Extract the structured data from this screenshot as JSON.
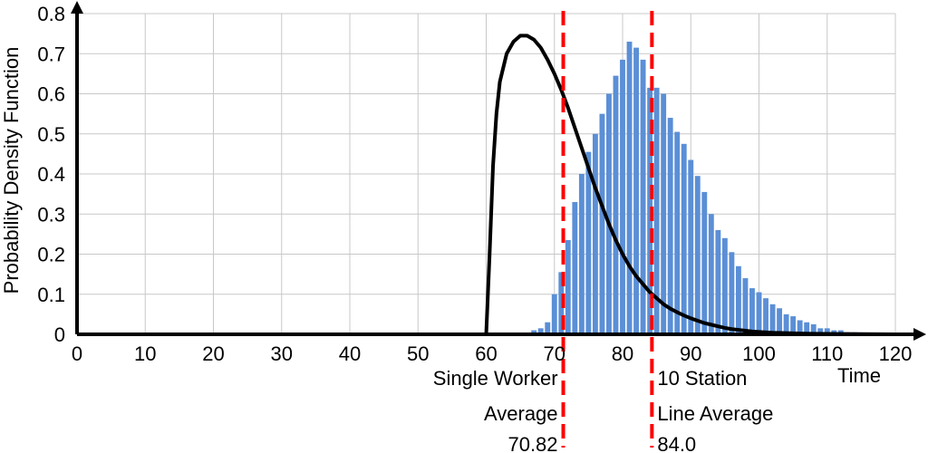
{
  "chart_data": {
    "type": "bar",
    "title": "",
    "xlabel": "Time",
    "ylabel": "Probability Density Function",
    "xlim": [
      0,
      120
    ],
    "ylim": [
      0,
      0.8
    ],
    "grid": true,
    "legend": "none",
    "x_ticks": [
      "0",
      "10",
      "20",
      "30",
      "40",
      "50",
      "60",
      "70",
      "80",
      "90",
      "100",
      "110",
      "120"
    ],
    "y_ticks": [
      "0",
      "0.1",
      "0.2",
      "0.3",
      "0.4",
      "0.5",
      "0.6",
      "0.7",
      "0.8"
    ],
    "series": [
      {
        "type": "bar",
        "color": "#5b8fd6",
        "x": [
          67,
          68,
          69,
          70,
          71,
          72,
          73,
          74,
          75,
          76,
          77,
          78,
          79,
          80,
          81,
          82,
          83,
          84,
          85,
          86,
          87,
          88,
          89,
          90,
          91,
          92,
          93,
          94,
          95,
          96,
          97,
          98,
          99,
          100,
          101,
          102,
          103,
          104,
          105,
          106,
          107,
          108,
          109,
          110,
          111,
          112,
          113,
          114,
          115,
          116,
          117
        ],
        "values": [
          0.01,
          0.015,
          0.03,
          0.1,
          0.155,
          0.235,
          0.33,
          0.4,
          0.455,
          0.5,
          0.55,
          0.6,
          0.645,
          0.685,
          0.73,
          0.715,
          0.685,
          0.615,
          0.615,
          0.6,
          0.54,
          0.505,
          0.475,
          0.435,
          0.395,
          0.355,
          0.3,
          0.26,
          0.24,
          0.205,
          0.17,
          0.14,
          0.115,
          0.105,
          0.09,
          0.075,
          0.065,
          0.05,
          0.045,
          0.035,
          0.03,
          0.025,
          0.015,
          0.015,
          0.01,
          0.01,
          0.005,
          0.005,
          0.003,
          0.002,
          0.001
        ]
      },
      {
        "type": "line",
        "color": "#000000",
        "x": [
          0,
          60,
          60.5,
          61,
          61.5,
          62,
          63,
          64,
          65,
          66,
          67,
          68,
          69,
          70,
          71,
          72,
          73,
          74,
          75,
          76,
          77,
          78,
          79,
          80,
          81,
          82,
          83,
          84,
          85,
          86,
          87,
          88,
          89,
          90,
          91,
          92,
          93,
          94,
          95,
          96,
          97,
          98,
          99,
          100,
          102,
          104,
          106,
          108,
          110,
          115,
          120
        ],
        "values": [
          0,
          0,
          0.2,
          0.42,
          0.55,
          0.63,
          0.7,
          0.73,
          0.745,
          0.745,
          0.735,
          0.715,
          0.685,
          0.65,
          0.61,
          0.565,
          0.515,
          0.465,
          0.415,
          0.365,
          0.32,
          0.275,
          0.235,
          0.2,
          0.17,
          0.145,
          0.125,
          0.105,
          0.09,
          0.075,
          0.064,
          0.055,
          0.047,
          0.04,
          0.034,
          0.028,
          0.024,
          0.02,
          0.016,
          0.013,
          0.011,
          0.009,
          0.007,
          0.006,
          0.004,
          0.003,
          0.002,
          0.0015,
          0.001,
          0.0005,
          0
        ]
      }
    ],
    "reference_lines": [
      {
        "x": 71.3,
        "color": "#ff0000",
        "label_lines": [
          "Single Worker",
          "Average",
          "70.82"
        ]
      },
      {
        "x": 84.3,
        "color": "#ff0000",
        "label_lines": [
          "10 Station",
          "Line  Average",
          "84.0"
        ]
      }
    ]
  }
}
